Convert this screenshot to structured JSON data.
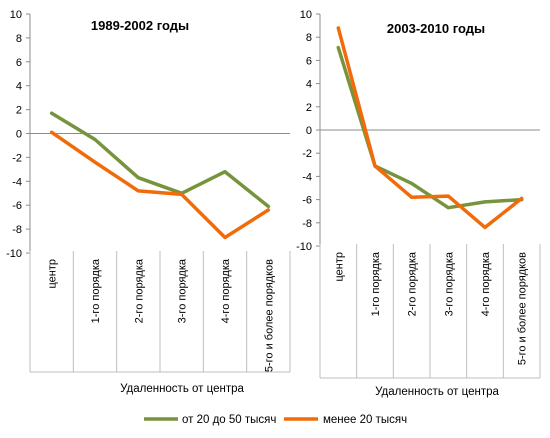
{
  "colors": {
    "series_green": "#77933C",
    "series_orange": "#F26B0A",
    "axis": "#8C8C8C",
    "grid": "#BFBFBF"
  },
  "legend": [
    {
      "name": "от 20 до 50 тысяч",
      "color": "#77933C"
    },
    {
      "name": "менее 20 тысяч",
      "color": "#F26B0A"
    }
  ],
  "chart_data": [
    {
      "type": "line",
      "title": "1989-2002 годы",
      "xlabel": "Удаленность от центра",
      "ylabel": "",
      "ylim": [
        -10,
        10
      ],
      "yticks": [
        10,
        8,
        6,
        4,
        2,
        0,
        -2,
        -4,
        -6,
        -8,
        -10
      ],
      "categories": [
        "центр",
        "1-го порядка",
        "2-го порядка",
        "3-го порядка",
        "4-го порядка",
        "5-го и более порядков"
      ],
      "series": [
        {
          "name": "от 20 до 50 тысяч",
          "values": [
            1.7,
            -0.5,
            -3.7,
            -5.0,
            -3.2,
            -6.1
          ]
        },
        {
          "name": "менее 20 тысяч",
          "values": [
            0.1,
            -2.4,
            -4.8,
            -5.1,
            -8.7,
            -6.4
          ]
        }
      ]
    },
    {
      "type": "line",
      "title": "2003-2010 годы",
      "xlabel": "Удаленность от центра",
      "ylabel": "",
      "ylim": [
        -10,
        10
      ],
      "yticks": [
        10,
        8,
        6,
        4,
        2,
        0,
        -2,
        -4,
        -6,
        -8,
        -10
      ],
      "categories": [
        "центр",
        "1-го порядка",
        "2-го порядка",
        "3-го порядка",
        "4-го порядка",
        "5-го и более порядков"
      ],
      "series": [
        {
          "name": "от 20 до 50 тысяч",
          "values": [
            7.1,
            -3.1,
            -4.6,
            -6.7,
            -6.2,
            -6.0
          ]
        },
        {
          "name": "менее 20 тысяч",
          "values": [
            8.8,
            -3.1,
            -5.8,
            -5.7,
            -8.4,
            -5.9
          ]
        }
      ]
    }
  ]
}
